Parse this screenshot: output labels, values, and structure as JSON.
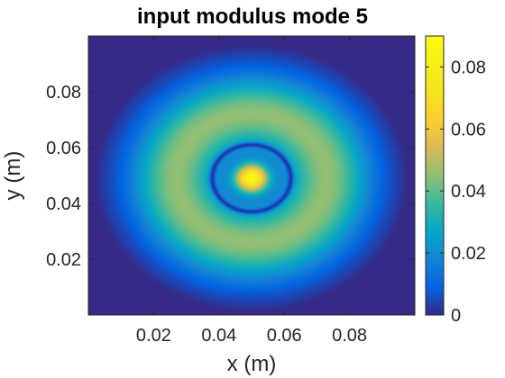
{
  "chart_data": {
    "type": "heatmap",
    "title": "input modulus mode 5",
    "xlabel": "x (m)",
    "ylabel": "y (m)",
    "xlim": [
      0,
      0.1
    ],
    "ylim": [
      0,
      0.1
    ],
    "xticks": [
      0.02,
      0.04,
      0.06,
      0.08
    ],
    "yticks": [
      0.02,
      0.04,
      0.06,
      0.08
    ],
    "xtick_labels": [
      "0.02",
      "0.04",
      "0.06",
      "0.08"
    ],
    "ytick_labels": [
      "0.02",
      "0.04",
      "0.06",
      "0.08"
    ],
    "colormap": "parula",
    "colorbar": {
      "limits": [
        0,
        0.09
      ],
      "ticks": [
        0,
        0.02,
        0.04,
        0.06,
        0.08
      ],
      "tick_labels": [
        "0",
        "0.02",
        "0.04",
        "0.06",
        "0.08"
      ]
    },
    "field": {
      "center": [
        0.05,
        0.049
      ],
      "peak_value": 0.085,
      "core_radius": 0.005,
      "node_ring_radius": 0.012,
      "ring_peak_radius": 0.023,
      "ring_peak_value": 0.045,
      "outer_edge_radius": 0.045
    }
  }
}
